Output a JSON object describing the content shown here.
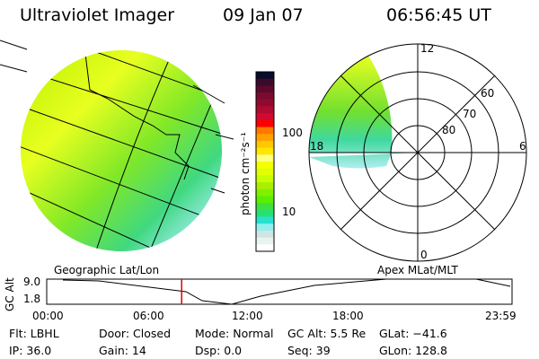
{
  "header": {
    "instrument": "Ultraviolet Imager",
    "date": "09 Jan 07",
    "time": "06:56:45 UT"
  },
  "colorbar": {
    "label": "photon cm⁻²s⁻¹",
    "ticks": [
      "100",
      "10"
    ],
    "colors": [
      "#0a0a2a",
      "#3a0a2a",
      "#5a0a2a",
      "#7a0a30",
      "#900a30",
      "#b00a30",
      "#d00a30",
      "#ff0000",
      "#ff7800",
      "#ffa000",
      "#ffc800",
      "#ffe600",
      "#ffff80",
      "#f4ff00",
      "#e0ff00",
      "#c8ff00",
      "#a8f000",
      "#80f000",
      "#58f000",
      "#40e040",
      "#28e070",
      "#28e0d0",
      "#90f0f0",
      "#d0e4e4",
      "#e8f4ee",
      "#ffffff"
    ]
  },
  "left_map": {
    "label": "Geographic Lat/Lon"
  },
  "right_map": {
    "label": "Apex MLat/MLT",
    "mlt_labels": {
      "top": "12",
      "bottom": "0",
      "left": "18",
      "right": "6"
    },
    "lat_labels": [
      "80",
      "70",
      "60"
    ]
  },
  "timeline": {
    "ylabel": "GC Alt",
    "yticks": [
      "9.0",
      "1.8"
    ],
    "xticks": [
      "00:00",
      "06:00",
      "12:00",
      "18:00",
      "23:59"
    ],
    "current_time_fraction": 0.29,
    "marker_color": "#e00000"
  },
  "info": [
    [
      "Flt: LBHL",
      "Door: Closed",
      "Mode: Normal",
      "GC Alt: 5.5 Re",
      "GLat: −41.6"
    ],
    [
      "IP: 36.0",
      "Gain: 14",
      "Dsp:     0.0",
      "Seq: 39",
      "GLon: 128.8"
    ]
  ]
}
